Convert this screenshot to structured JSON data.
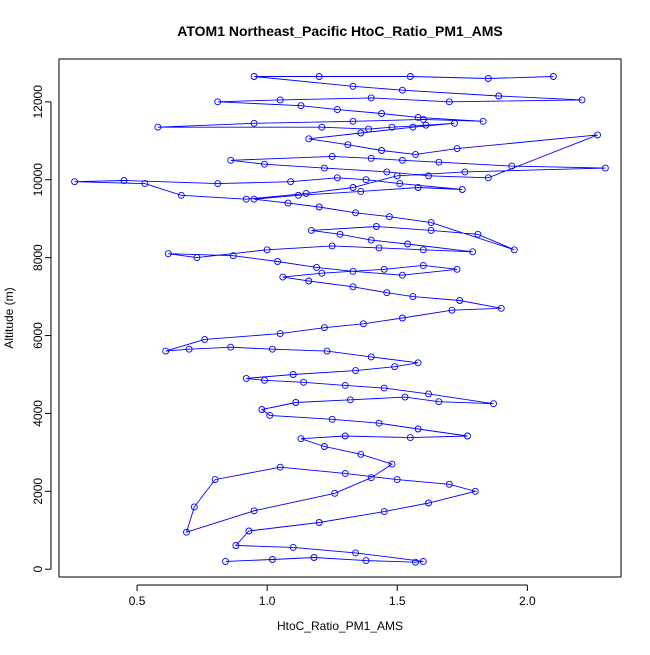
{
  "chart_data": {
    "type": "scatter",
    "title": "ATOM1 Northeast_Pacific HtoC_Ratio_PM1_AMS",
    "xlabel": "HtoC_Ratio_PM1_AMS",
    "ylabel": "Altitude (m)",
    "xlim": [
      0.2,
      2.36
    ],
    "ylim": [
      -200,
      13100
    ],
    "xticks": [
      0.5,
      1.0,
      1.5,
      2.0
    ],
    "xtick_labels": [
      "0.5",
      "1.0",
      "1.5",
      "2.0"
    ],
    "yticks": [
      0,
      2000,
      4000,
      6000,
      8000,
      10000,
      12000
    ],
    "ytick_labels": [
      "0",
      "2000",
      "4000",
      "6000",
      "8000",
      "10000",
      "12000"
    ],
    "grid": false,
    "legend": "none",
    "marker": "open-circle",
    "connected": true,
    "series_color": "#0000ff",
    "series": [
      {
        "x": [
          0.84,
          1.02,
          1.18,
          1.38,
          1.57,
          1.6,
          1.34,
          1.1,
          0.88,
          0.93,
          1.2,
          1.45,
          1.62,
          1.8,
          1.7,
          1.5,
          1.3,
          1.05,
          0.8,
          0.72,
          0.69,
          0.95,
          1.26,
          1.4,
          1.48,
          1.36,
          1.22,
          1.13,
          1.3,
          1.55,
          1.77,
          1.58,
          1.43,
          1.25,
          1.01,
          0.98,
          1.11,
          1.32,
          1.53,
          1.66,
          1.87,
          1.62,
          1.45,
          1.3,
          1.14,
          0.99,
          0.92,
          1.1,
          1.34,
          1.49,
          1.58,
          1.4,
          1.23,
          1.02,
          0.86,
          0.7,
          0.61,
          0.76,
          1.05,
          1.22,
          1.37,
          1.52,
          1.71,
          1.9,
          1.74,
          1.56,
          1.46,
          1.33,
          1.16,
          1.06,
          1.21,
          1.45,
          1.6,
          1.73,
          1.52,
          1.33,
          1.19,
          1.04,
          0.87,
          0.62,
          0.73,
          1.0,
          1.25,
          1.43,
          1.6,
          1.79,
          1.54,
          1.4,
          1.28,
          1.17,
          1.42,
          1.63,
          1.81,
          1.95,
          1.63,
          1.47,
          1.34,
          1.2,
          1.08,
          0.95,
          1.12,
          1.36,
          1.58,
          1.75,
          1.51,
          1.38,
          1.27,
          1.09,
          0.81,
          0.45,
          0.26,
          0.53,
          0.67,
          0.92,
          1.15,
          1.33,
          1.5,
          1.76,
          2.3,
          1.94,
          1.66,
          1.52,
          1.4,
          1.25,
          0.86,
          0.99,
          1.22,
          1.46,
          1.62,
          1.85,
          2.27,
          1.73,
          1.57,
          1.44,
          1.31,
          1.16,
          1.36,
          1.56,
          1.72,
          1.61,
          1.48,
          1.39,
          1.21,
          0.58,
          0.95,
          1.33,
          1.6,
          1.83,
          1.58,
          1.44,
          1.27,
          1.13,
          0.81,
          1.05,
          1.4,
          1.7,
          2.21,
          1.89,
          1.52,
          1.33,
          0.95,
          1.2,
          1.55,
          1.85,
          2.1
        ],
        "y": [
          200,
          250,
          300,
          220,
          180,
          200,
          420,
          560,
          610,
          980,
          1200,
          1480,
          1700,
          2000,
          2180,
          2300,
          2460,
          2620,
          2300,
          1600,
          950,
          1500,
          1950,
          2350,
          2700,
          2950,
          3150,
          3350,
          3420,
          3380,
          3420,
          3600,
          3750,
          3850,
          3950,
          4100,
          4280,
          4350,
          4420,
          4300,
          4250,
          4500,
          4650,
          4720,
          4800,
          4850,
          4900,
          5000,
          5100,
          5200,
          5300,
          5450,
          5600,
          5650,
          5700,
          5650,
          5600,
          5900,
          6050,
          6200,
          6300,
          6450,
          6650,
          6700,
          6900,
          7000,
          7100,
          7250,
          7400,
          7500,
          7600,
          7700,
          7800,
          7700,
          7550,
          7650,
          7750,
          7900,
          8050,
          8100,
          8000,
          8200,
          8300,
          8250,
          8200,
          8150,
          8350,
          8450,
          8600,
          8700,
          8800,
          8700,
          8600,
          8200,
          8900,
          9050,
          9150,
          9300,
          9400,
          9500,
          9600,
          9700,
          9800,
          9750,
          9900,
          10000,
          10050,
          9950,
          9900,
          9980,
          9950,
          9900,
          9600,
          9500,
          9650,
          9800,
          10100,
          10200,
          10300,
          10350,
          10450,
          10500,
          10550,
          10600,
          10500,
          10400,
          10300,
          10200,
          10100,
          10050,
          11150,
          10800,
          10650,
          10750,
          10900,
          11050,
          11200,
          11350,
          11450,
          11400,
          11350,
          11300,
          11350,
          11350,
          11450,
          11500,
          11550,
          11500,
          11600,
          11700,
          11800,
          11900,
          12000,
          12050,
          12100,
          12000,
          12050,
          12150,
          12300,
          12400,
          12650,
          12650,
          12650,
          12600,
          12650
        ]
      }
    ]
  }
}
